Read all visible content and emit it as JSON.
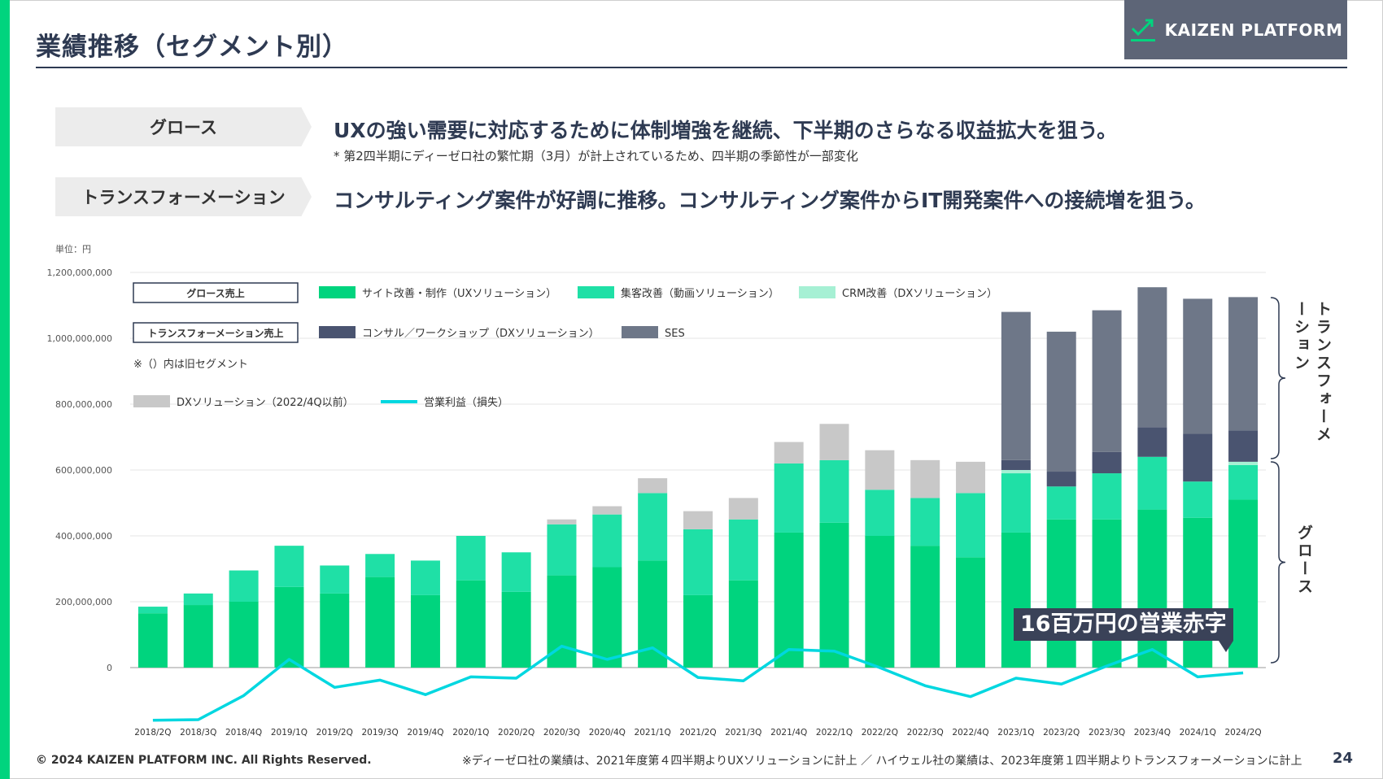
{
  "header": {
    "title": "業績推移（セグメント別）",
    "logo_text": "KAIZEN PLATFORM",
    "logo_icon": "check-arrow-icon"
  },
  "segments": [
    {
      "tag": "グロース",
      "text": "UXの強い需要に対応するために体制増強を継続、下半期のさらなる収益拡大を狙う。",
      "note": "* 第2四半期にディーゼロ社の繁忙期（3月）が計上されているため、四半期の季節性が一部変化"
    },
    {
      "tag": "トランスフォーメーション",
      "text": "コンサルティング案件が好調に推移。コンサルティング案件からIT開発案件への接続増を狙う。"
    }
  ],
  "chart_data": {
    "type": "bar",
    "unit_label": "単位：円",
    "stacked": true,
    "ylim": [
      -200000000,
      1200000000
    ],
    "yticks": [
      0,
      200000000,
      400000000,
      600000000,
      800000000,
      1000000000,
      1200000000
    ],
    "ytick_labels": [
      "0",
      "200,000,000",
      "400,000,000",
      "600,000,000",
      "800,000,000",
      "1,000,000,000",
      "1,200,000,000"
    ],
    "grid": true,
    "categories": [
      "2018/2Q",
      "2018/3Q",
      "2018/4Q",
      "2019/1Q",
      "2019/2Q",
      "2019/3Q",
      "2019/4Q",
      "2020/1Q",
      "2020/2Q",
      "2020/3Q",
      "2020/4Q",
      "2021/1Q",
      "2021/2Q",
      "2021/3Q",
      "2021/4Q",
      "2022/1Q",
      "2022/2Q",
      "2022/3Q",
      "2022/4Q",
      "2023/1Q",
      "2023/2Q",
      "2023/3Q",
      "2023/4Q",
      "2024/1Q",
      "2024/2Q"
    ],
    "series": [
      {
        "name": "サイト改善・制作（UXソリューション）",
        "color": "#00d47e",
        "values": [
          165000000,
          190000000,
          200000000,
          245000000,
          225000000,
          275000000,
          220000000,
          265000000,
          230000000,
          280000000,
          305000000,
          325000000,
          220000000,
          265000000,
          410000000,
          440000000,
          400000000,
          370000000,
          335000000,
          410000000,
          450000000,
          450000000,
          480000000,
          455000000,
          510000000
        ]
      },
      {
        "name": "集客改善（動画ソリューション）",
        "color": "#1fe0a6",
        "values": [
          20000000,
          35000000,
          95000000,
          125000000,
          85000000,
          70000000,
          105000000,
          135000000,
          120000000,
          155000000,
          160000000,
          205000000,
          200000000,
          185000000,
          210000000,
          190000000,
          140000000,
          145000000,
          195000000,
          180000000,
          100000000,
          140000000,
          160000000,
          110000000,
          105000000
        ]
      },
      {
        "name": "CRM改善（DXソリューション）",
        "color": "#a6f0d4",
        "values": [
          0,
          0,
          0,
          0,
          0,
          0,
          0,
          0,
          0,
          0,
          0,
          0,
          0,
          0,
          0,
          0,
          0,
          0,
          0,
          10000000,
          0,
          0,
          0,
          0,
          10000000
        ]
      },
      {
        "name": "DXソリューション（2022/4Q以前）",
        "color": "#c8c8c8",
        "values": [
          0,
          0,
          0,
          0,
          0,
          0,
          0,
          0,
          0,
          15000000,
          25000000,
          45000000,
          55000000,
          65000000,
          65000000,
          110000000,
          120000000,
          115000000,
          95000000,
          0,
          0,
          0,
          0,
          0,
          0
        ]
      },
      {
        "name": "コンサル／ワークショップ（DXソリューション）",
        "color": "#4a5470",
        "values": [
          0,
          0,
          0,
          0,
          0,
          0,
          0,
          0,
          0,
          0,
          0,
          0,
          0,
          0,
          0,
          0,
          0,
          0,
          0,
          30000000,
          45000000,
          65000000,
          90000000,
          145000000,
          95000000
        ]
      },
      {
        "name": "SES",
        "color": "#6e7788",
        "values": [
          0,
          0,
          0,
          0,
          0,
          0,
          0,
          0,
          0,
          0,
          0,
          0,
          0,
          0,
          0,
          0,
          0,
          0,
          0,
          450000000,
          425000000,
          430000000,
          425000000,
          410000000,
          405000000
        ]
      }
    ],
    "line_series": {
      "name": "営業利益（損失）",
      "color": "#00d7e0",
      "values": [
        -160000000,
        -158000000,
        -85000000,
        25000000,
        -60000000,
        -38000000,
        -82000000,
        -28000000,
        -32000000,
        65000000,
        25000000,
        60000000,
        -30000000,
        -40000000,
        55000000,
        50000000,
        0,
        -55000000,
        -88000000,
        -32000000,
        -50000000,
        5000000,
        55000000,
        -28000000,
        -16000000
      ]
    },
    "legend": {
      "group_growth": "グロース売上",
      "group_transformation": "トランスフォーメーション売上",
      "note": "※（）内は旧セグメント"
    },
    "annotation": "16百万円の営業赤字",
    "side_labels": {
      "transformation": "トランスフォーメーション",
      "growth": "グロース"
    }
  },
  "footer": {
    "copyright": "© 2024 KAIZEN PLATFORM INC. All Rights Reserved.",
    "note": "※ディーゼロ社の業績は、2021年度第４四半期よりUXソリューションに計上 ／ ハイウェル社の業績は、2023年度第１四半期よりトランスフォーメーションに計上",
    "page": "24"
  }
}
